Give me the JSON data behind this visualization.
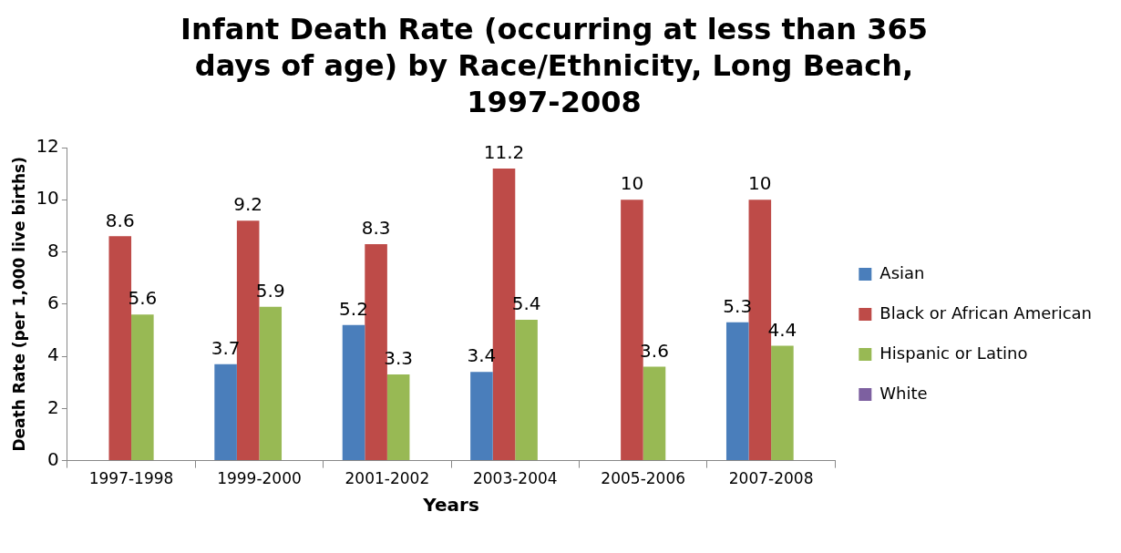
{
  "chart_data": {
    "type": "bar",
    "title": "Infant Death Rate (occurring at less than 365 days of age) by Race/Ethnicity, Long Beach, 1997-2008",
    "xlabel": "Years",
    "ylabel": "Death Rate (per 1,000 live births)",
    "categories": [
      "1997-1998",
      "1999-2000",
      "2001-2002",
      "2003-2004",
      "2005-2006",
      "2007-2008"
    ],
    "series": [
      {
        "name": "Asian",
        "color": "#4a7ebb",
        "values": [
          null,
          3.7,
          5.2,
          3.4,
          null,
          5.3
        ]
      },
      {
        "name": "Black or African American",
        "color": "#be4b48",
        "values": [
          8.6,
          9.2,
          8.3,
          11.2,
          10,
          10
        ]
      },
      {
        "name": "Hispanic or Latino",
        "color": "#98b954",
        "values": [
          5.6,
          5.9,
          3.3,
          5.4,
          3.6,
          4.4
        ]
      },
      {
        "name": "White",
        "color": "#7d60a0",
        "values": [
          null,
          null,
          null,
          null,
          null,
          null
        ]
      }
    ],
    "ylim": [
      0,
      12
    ],
    "yticks": [
      0,
      2,
      4,
      6,
      8,
      10,
      12
    ],
    "grid": false,
    "legend": "right",
    "data_labels": true
  }
}
